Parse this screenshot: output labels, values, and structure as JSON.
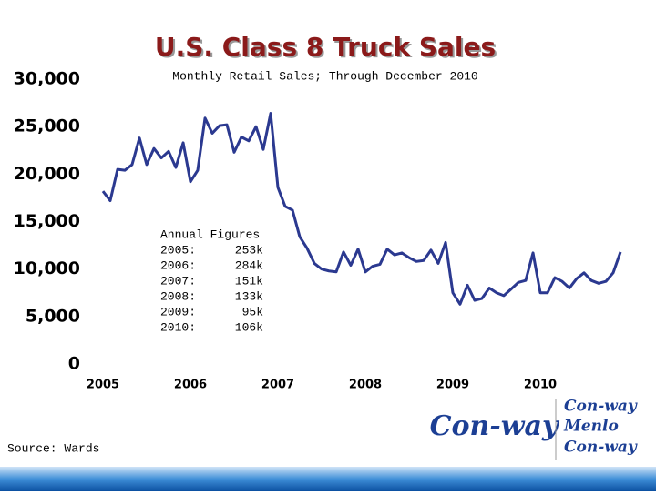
{
  "chart_data": {
    "type": "line",
    "title": "U.S. Class 8 Truck Sales",
    "subtitle": "Monthly Retail Sales; Through December 2010",
    "x": [
      2005,
      2005.083,
      2005.167,
      2005.25,
      2005.333,
      2005.417,
      2005.5,
      2005.583,
      2005.667,
      2005.75,
      2005.833,
      2005.917,
      2006,
      2006.083,
      2006.167,
      2006.25,
      2006.333,
      2006.417,
      2006.5,
      2006.583,
      2006.667,
      2006.75,
      2006.833,
      2006.917,
      2007,
      2007.083,
      2007.167,
      2007.25,
      2007.333,
      2007.417,
      2007.5,
      2007.583,
      2007.667,
      2007.75,
      2007.833,
      2007.917,
      2008,
      2008.083,
      2008.167,
      2008.25,
      2008.333,
      2008.417,
      2008.5,
      2008.583,
      2008.667,
      2008.75,
      2008.833,
      2008.917,
      2009,
      2009.083,
      2009.167,
      2009.25,
      2009.333,
      2009.417,
      2009.5,
      2009.583,
      2009.667,
      2009.75,
      2009.833,
      2009.917,
      2010,
      2010.083,
      2010.167,
      2010.25,
      2010.333,
      2010.417,
      2010.5,
      2010.583,
      2010.667,
      2010.75,
      2010.833,
      2010.917
    ],
    "series": [
      {
        "color": "#2b3990",
        "values": [
          18200,
          17200,
          20500,
          20400,
          21000,
          23800,
          21000,
          22700,
          21700,
          22400,
          20700,
          23300,
          19200,
          20400,
          25900,
          24300,
          25100,
          25200,
          22300,
          23900,
          23500,
          25000,
          22600,
          26400,
          18600,
          16600,
          16200,
          13400,
          12200,
          10600,
          10000,
          9800,
          9700,
          11800,
          10400,
          12100,
          9700,
          10300,
          10500,
          12100,
          11500,
          11700,
          11200,
          10800,
          10900,
          12000,
          10600,
          12800,
          7500,
          6300,
          8300,
          6700,
          6900,
          8000,
          7500,
          7200,
          7900,
          8600,
          8800,
          11700,
          7500,
          7500,
          9100,
          8700,
          8000,
          9000,
          9600,
          8800,
          8500,
          8700,
          9600,
          11800
        ]
      }
    ],
    "xlim": [
      2005,
      2011
    ],
    "xticks": [
      2005,
      2006,
      2007,
      2008,
      2009,
      2010
    ],
    "ylim": [
      0,
      30000
    ],
    "yticks": [
      0,
      {
        "value": 5000,
        "label": "5,000"
      },
      {
        "value": 10000,
        "label": "10,000"
      },
      {
        "value": 15000,
        "label": "15,000"
      },
      {
        "value": 20000,
        "label": "20,000"
      },
      {
        "value": 25000,
        "label": "25,000"
      },
      {
        "value": 30000,
        "label": "30,000"
      }
    ],
    "grid": false,
    "annual_figures": {
      "title": "Annual Figures",
      "rows": [
        [
          "2005:",
          "253k"
        ],
        [
          "2006:",
          "284k"
        ],
        [
          "2007:",
          "151k"
        ],
        [
          "2008:",
          "133k"
        ],
        [
          "2009:",
          "95k"
        ],
        [
          "2010:",
          "106k"
        ]
      ]
    },
    "source": "Source: Wards"
  },
  "logos": {
    "main": "Con-way",
    "list": [
      "Con-way",
      "Menlo",
      "Con-way"
    ]
  }
}
